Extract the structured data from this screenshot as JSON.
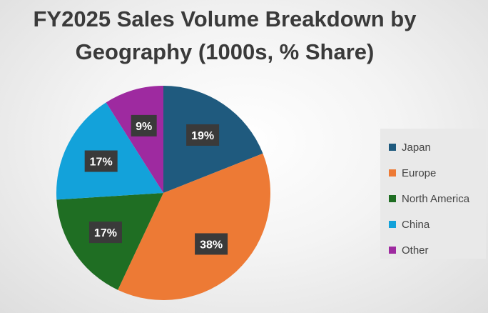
{
  "chart_data": {
    "type": "pie",
    "title": "FY2025 Sales Volume Breakdown by Geography (1000s, % Share)",
    "legend_position": "right",
    "slices": [
      {
        "label": "Japan",
        "value": 19,
        "data_label": "19%",
        "color": "#1f5a7e"
      },
      {
        "label": "Europe",
        "value": 38,
        "data_label": "38%",
        "color": "#ed7a35"
      },
      {
        "label": "North America",
        "value": 17,
        "data_label": "17%",
        "color": "#1f6e23"
      },
      {
        "label": "China",
        "value": 17,
        "data_label": "17%",
        "color": "#13a2da"
      },
      {
        "label": "Other",
        "value": 9,
        "data_label": "9%",
        "color": "#9e2aa0"
      }
    ]
  }
}
